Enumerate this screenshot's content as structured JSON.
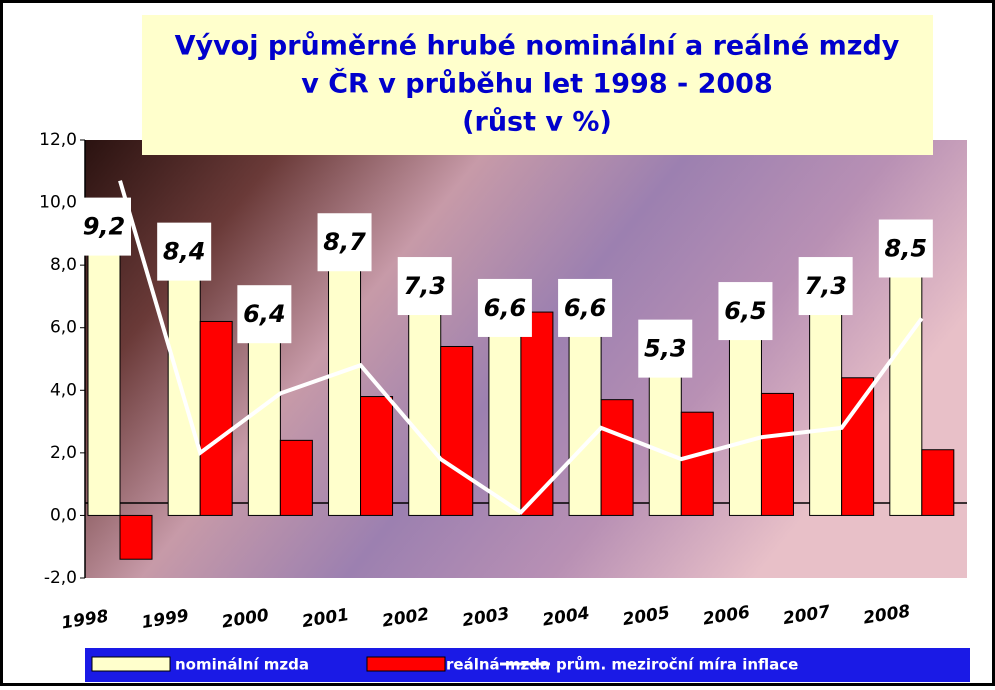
{
  "chart_data": {
    "type": "bar",
    "title": [
      "Vývoj průměrné hrubé nominální a reálné mzdy",
      "v ČR v průběhu let 1998 - 2008",
      "(růst  v %)"
    ],
    "categories": [
      "1998",
      "1999",
      "2000",
      "2001",
      "2002",
      "2003",
      "2004",
      "2005",
      "2006",
      "2007",
      "2008"
    ],
    "series": [
      {
        "name": "nominální mzda",
        "color": "#ffffcc",
        "values": [
          9.2,
          8.4,
          6.4,
          8.7,
          7.3,
          6.6,
          6.6,
          5.3,
          6.5,
          7.3,
          8.5
        ],
        "value_labels": [
          "9,2",
          "8,4",
          "6,4",
          "8,7",
          "7,3",
          "6,6",
          "6,6",
          "5,3",
          "6,5",
          "7,3",
          "8,5"
        ]
      },
      {
        "name": "reálná mzda",
        "color": "#ff0000",
        "values": [
          -1.4,
          6.2,
          2.4,
          3.8,
          5.4,
          6.5,
          3.7,
          3.3,
          3.9,
          4.4,
          2.1
        ]
      },
      {
        "name": "prům. meziroční míra inflace",
        "type": "line",
        "color": "#ffffff",
        "values": [
          10.7,
          2.0,
          3.9,
          4.8,
          1.8,
          0.1,
          2.8,
          1.8,
          2.5,
          2.8,
          6.3
        ]
      }
    ],
    "ylim": [
      -2,
      12
    ],
    "yticks": [
      {
        "value": -2,
        "label": "-2,0"
      },
      {
        "value": 0,
        "label": "0,0"
      },
      {
        "value": 2,
        "label": "2,0"
      },
      {
        "value": 4,
        "label": "4,0"
      },
      {
        "value": 6,
        "label": "6,0"
      },
      {
        "value": 8,
        "label": "8,0"
      },
      {
        "value": 10,
        "label": "10,0"
      },
      {
        "value": 12,
        "label": "12,0"
      }
    ],
    "legend": "bottom"
  }
}
